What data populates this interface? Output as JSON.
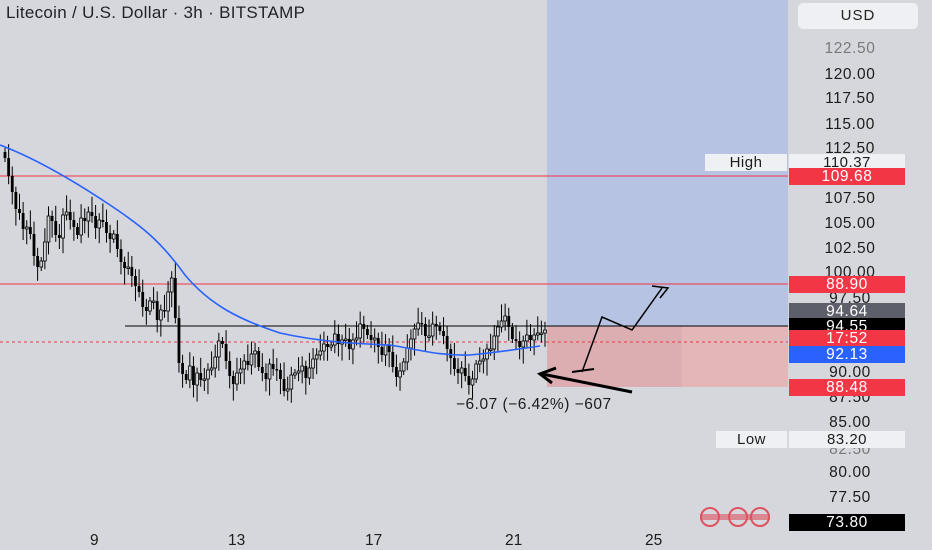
{
  "header": {
    "title": "Litecoin / U.S. Dollar · 3h · BITSTAMP",
    "currency_button": "USD"
  },
  "markers": {
    "high_label": "High",
    "high_value": "110.37",
    "low_label": "Low",
    "low_value": "83.20"
  },
  "price_tags": [
    {
      "label": "109.68",
      "bg": "#f23645",
      "fg": "#ffffff"
    },
    {
      "label": "88.90",
      "bg": "#f23645",
      "fg": "#ffffff"
    },
    {
      "label": "94.64",
      "bg": "#5d606b",
      "fg": "#ffffff"
    },
    {
      "label": "94.55",
      "bg": "#000000",
      "fg": "#ffffff"
    },
    {
      "label": "17:52",
      "bg": "#f23645",
      "fg": "#ffffff"
    },
    {
      "label": "92.13",
      "bg": "#2962ff",
      "fg": "#ffffff"
    },
    {
      "label": "88.48",
      "bg": "#f23645",
      "fg": "#ffffff"
    },
    {
      "label": "73.80",
      "bg": "#000000",
      "fg": "#ffffff"
    }
  ],
  "measurement_label": "−6.07 (−6.42%) −607",
  "colors": {
    "background": "#d5d7dc",
    "target_zone": "#b6c3e3",
    "stop_zone": "#e3b6b8",
    "ma_line": "#2962ff",
    "candle": "#000000",
    "horizontal_red": "#f23645"
  },
  "chart_data": {
    "type": "candlestick",
    "title": "Litecoin / U.S. Dollar · 3h · BITSTAMP",
    "y_ticks": [
      "122.50",
      "120.00",
      "117.50",
      "115.00",
      "112.50",
      "107.50",
      "105.00",
      "102.50",
      "100.00",
      "97.50",
      "90.00",
      "87.50",
      "85.00",
      "82.50",
      "80.00",
      "77.50"
    ],
    "x_ticks": [
      "9",
      "13",
      "17",
      "21",
      "25"
    ],
    "ylim": [
      72.5,
      125.5
    ],
    "horizontal_lines": [
      109.68,
      98.9,
      94.55,
      92.8
    ],
    "candles_close": [
      110.2,
      108.4,
      106.8,
      105.1,
      104.7,
      103.1,
      103.3,
      102.6,
      100.4,
      99.3,
      99.9,
      101.8,
      104.4,
      103.9,
      102.5,
      102.2,
      104.5,
      104.8,
      104.0,
      103.3,
      102.5,
      104.2,
      103.9,
      104.8,
      104.4,
      103.2,
      104.0,
      103.8,
      102.7,
      102.1,
      102.6,
      101.1,
      99.8,
      99.2,
      99.3,
      98.4,
      97.4,
      96.8,
      95.3,
      94.9,
      95.9,
      95.9,
      94.0,
      95.0,
      94.9,
      96.8,
      98.2,
      94.2,
      89.7,
      88.6,
      88.0,
      89.4,
      87.5,
      88.7,
      88.0,
      88.1,
      89.0,
      89.2,
      90.3,
      91.9,
      91.6,
      89.9,
      88.4,
      87.6,
      88.7,
      89.1,
      89.9,
      89.5,
      90.6,
      90.9,
      89.3,
      88.7,
      88.1,
      89.6,
      89.1,
      89.0,
      88.1,
      86.9,
      87.1,
      88.5,
      88.7,
      88.9,
      89.4,
      88.2,
      89.2,
      90.1,
      90.5,
      90.9,
      91.6,
      91.3,
      91.5,
      92.6,
      91.6,
      92.0,
      92.1,
      91.1,
      92.0,
      92.2,
      93.6,
      93.1,
      92.5,
      92.0,
      92.2,
      91.3,
      90.5,
      91.5,
      90.8,
      89.3,
      88.3,
      88.9,
      89.8,
      91.2,
      92.1,
      93.1,
      93.7,
      93.6,
      92.4,
      92.4,
      93.6,
      93.4,
      92.9,
      92.4,
      91.1,
      90.2,
      89.1,
      88.7,
      89.2,
      88.4,
      87.5,
      88.1,
      89.6,
      89.9,
      90.1,
      91.1,
      91.1,
      92.4,
      93.3,
      93.9,
      94.4,
      93.3,
      92.1,
      91.9,
      91.3,
      91.9,
      92.5,
      92.0,
      92.5,
      92.7,
      92.7,
      93.0
    ]
  }
}
